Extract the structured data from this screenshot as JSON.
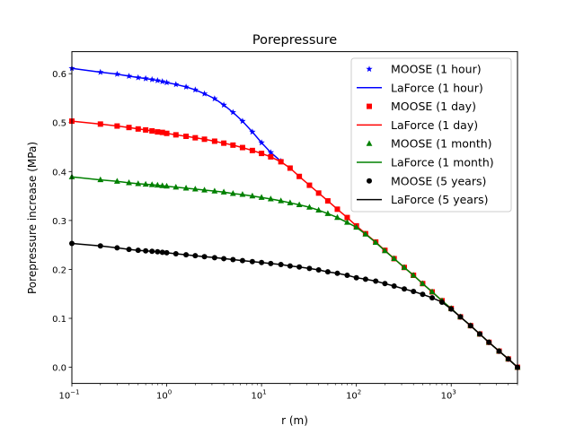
{
  "chart_data": {
    "type": "line",
    "title": "Porepressure",
    "xlabel": "r (m)",
    "ylabel": "Porepressure increase (MPa)",
    "xscale": "log",
    "xlim": [
      0.1,
      5000
    ],
    "ylim": [
      -0.033,
      0.645
    ],
    "grid": false,
    "legend_position": "top-right",
    "x_ticks": [
      {
        "value": 0.1,
        "base": "10",
        "exp": "−1"
      },
      {
        "value": 1,
        "base": "10",
        "exp": "0"
      },
      {
        "value": 10,
        "base": "10",
        "exp": "1"
      },
      {
        "value": 100,
        "base": "10",
        "exp": "2"
      },
      {
        "value": 1000,
        "base": "10",
        "exp": "3"
      }
    ],
    "y_ticks": [
      "0.0",
      "0.1",
      "0.2",
      "0.3",
      "0.4",
      "0.5",
      "0.6"
    ],
    "x": [
      0.1,
      0.2,
      0.3,
      0.4,
      0.5,
      0.6,
      0.7,
      0.8,
      0.9,
      1,
      1.25,
      1.6,
      2,
      2.5,
      3.2,
      4,
      5,
      6.3,
      8,
      10,
      12.5,
      16,
      20,
      25,
      32,
      40,
      50,
      63,
      80,
      100,
      125,
      160,
      200,
      250,
      320,
      400,
      500,
      630,
      800,
      1000,
      1250,
      1600,
      2000,
      2500,
      3200,
      4000,
      5000
    ],
    "series": [
      {
        "name": "MOOSE (1 hour)",
        "line_name": "LaForce (1 hour)",
        "color": "#0000ff",
        "marker": "star",
        "values": [
          0.611,
          0.603,
          0.599,
          0.595,
          0.592,
          0.59,
          0.588,
          0.586,
          0.584,
          0.582,
          0.578,
          0.573,
          0.567,
          0.559,
          0.549,
          0.536,
          0.521,
          0.503,
          0.481,
          0.459,
          0.439,
          0.421,
          null,
          null,
          null,
          null,
          null,
          null,
          null,
          null,
          null,
          null,
          null,
          null,
          null,
          null,
          null,
          null,
          null,
          null,
          null,
          null,
          null,
          null,
          null,
          null,
          null
        ]
      },
      {
        "name": "MOOSE (1 day)",
        "line_name": "LaForce (1 day)",
        "color": "#ff0000",
        "marker": "square",
        "values": [
          0.503,
          0.497,
          0.493,
          0.49,
          0.487,
          0.485,
          0.483,
          0.481,
          0.48,
          0.478,
          0.475,
          0.472,
          0.469,
          0.466,
          0.462,
          0.458,
          0.454,
          0.449,
          0.443,
          0.437,
          0.43,
          0.42,
          0.407,
          0.39,
          0.372,
          0.356,
          0.34,
          0.323,
          0.306,
          0.289,
          0.273,
          0.256,
          0.239,
          0.222,
          0.204,
          0.188,
          0.171,
          0.154,
          0.136,
          0.12,
          0.103,
          0.085,
          0.068,
          0.051,
          0.033,
          0.017,
          0.0
        ]
      },
      {
        "name": "MOOSE (1 month)",
        "line_name": "LaForce (1 month)",
        "color": "#008000",
        "marker": "triangle",
        "values": [
          0.389,
          0.383,
          0.38,
          0.377,
          0.375,
          0.374,
          0.373,
          0.372,
          0.371,
          0.37,
          0.368,
          0.366,
          0.364,
          0.362,
          0.36,
          0.358,
          0.355,
          0.353,
          0.35,
          0.347,
          0.344,
          0.34,
          0.336,
          0.332,
          0.327,
          0.321,
          0.314,
          0.306,
          0.296,
          0.286,
          0.272,
          0.255,
          0.238,
          0.222,
          0.204,
          0.188,
          0.171,
          0.154,
          0.136,
          0.12,
          0.103,
          0.085,
          0.068,
          0.051,
          0.033,
          0.017,
          0.0
        ]
      },
      {
        "name": "MOOSE (5 years)",
        "line_name": "LaForce (5 years)",
        "color": "#000000",
        "marker": "circle",
        "values": [
          0.253,
          0.248,
          0.244,
          0.241,
          0.239,
          0.238,
          0.237,
          0.236,
          0.235,
          0.234,
          0.232,
          0.23,
          0.228,
          0.226,
          0.224,
          0.222,
          0.22,
          0.218,
          0.216,
          0.214,
          0.212,
          0.21,
          0.207,
          0.205,
          0.202,
          0.199,
          0.195,
          0.192,
          0.188,
          0.183,
          0.18,
          0.176,
          0.171,
          0.166,
          0.16,
          0.155,
          0.149,
          0.142,
          0.133,
          0.119,
          0.103,
          0.085,
          0.068,
          0.051,
          0.033,
          0.017,
          0.0
        ]
      }
    ]
  }
}
